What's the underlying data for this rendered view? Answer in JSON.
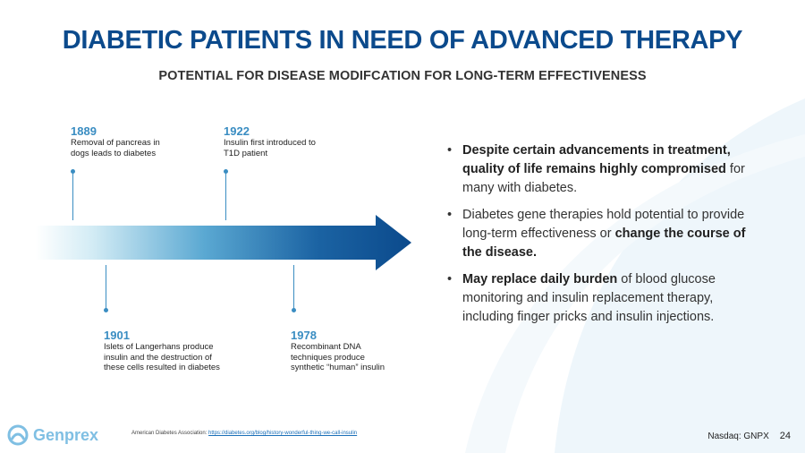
{
  "slide": {
    "title": "DIABETIC PATIENTS IN NEED OF ADVANCED THERAPY",
    "subtitle": "POTENTIAL FOR DISEASE MODIFCATION FOR LONG-TERM EFFECTIVENESS"
  },
  "timeline": {
    "events": [
      {
        "year": "1889",
        "lines": [
          "Removal of pancreas in",
          "dogs leads to diabetes"
        ]
      },
      {
        "year": "1922",
        "lines": [
          "Insulin first introduced to",
          "T1D patient"
        ]
      },
      {
        "year": "1901",
        "lines": [
          "Islets of Langerhans produce",
          "insulin and the destruction of",
          "these cells resulted in diabetes"
        ]
      },
      {
        "year": "1978",
        "lines": [
          "Recombinant DNA",
          "techniques produce",
          "synthetic “human” insulin"
        ]
      }
    ]
  },
  "bullets": {
    "symbol": "•",
    "b1": {
      "bold": "Despite certain advancements in treatment, quality of life remains highly compromised",
      "text": " for many with diabetes."
    },
    "b2": {
      "text": "Diabetes gene therapies hold potential to provide long-term effectiveness or ",
      "bold": "change the course of the disease."
    },
    "b3": {
      "bold": "May replace daily burden",
      "text": " of blood glucose monitoring and insulin replacement therapy, including finger pricks and insulin injections."
    }
  },
  "footer": {
    "logo_text": "Genprex",
    "source_prefix": "American Diabetes Association:",
    "source_link": "https://diabetes.org/blog/history-wonderful-thing-we-call-insulin",
    "nasdaq": "Nasdaq: GNPX",
    "page": "24"
  },
  "colors": {
    "title": "#0b4a8c",
    "accent": "#3a8dc2",
    "arrow_dark": "#0b4a8c",
    "logo": "#7fbfe3"
  }
}
